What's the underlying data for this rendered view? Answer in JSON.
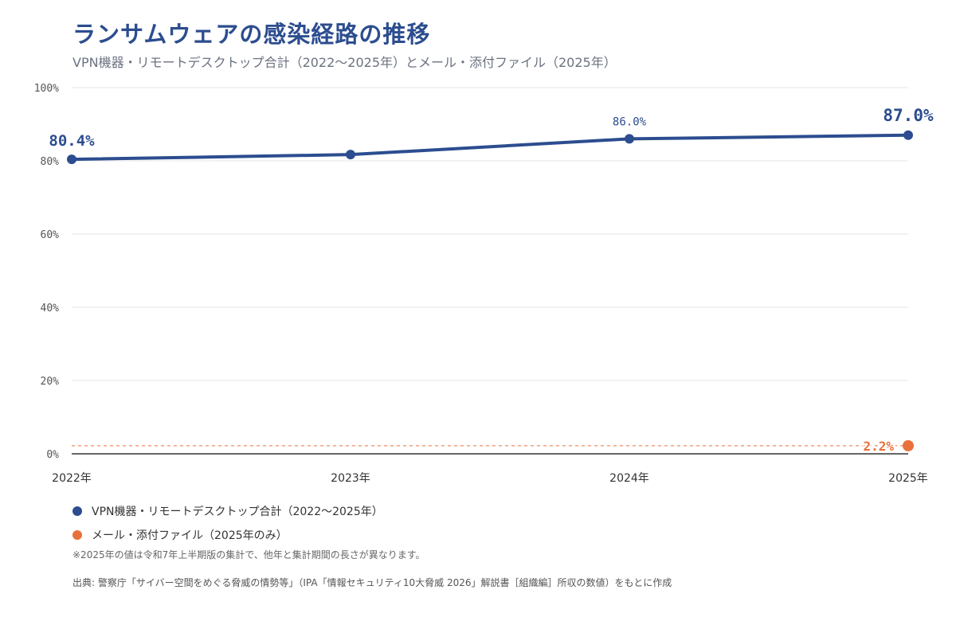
{
  "title": "ランサムウェアの感染経路の推移",
  "subtitle": "VPN機器・リモートデスクトップ合計（2022〜2025年）とメール・添付ファイル（2025年）",
  "colors": {
    "vpn": "#2c4d8f",
    "mail": "#e8703a",
    "grid": "#e6e6e6",
    "axis": "#333333"
  },
  "chart_data": {
    "type": "line",
    "categories": [
      "2022年",
      "2023年",
      "2024年",
      "2025年"
    ],
    "ylim": [
      0,
      100
    ],
    "yticks": [
      "0%",
      "20%",
      "40%",
      "60%",
      "80%",
      "100%"
    ],
    "yticks_values": [
      0,
      20,
      40,
      60,
      80,
      100
    ],
    "grid": true,
    "series": [
      {
        "name": "VPN機器・リモートデスクトップ合計（2022〜2025年）",
        "values": [
          80.4,
          81.7,
          86.0,
          87.0
        ],
        "labels": [
          "80.4%",
          null,
          "86.0%",
          "87.0%"
        ]
      },
      {
        "name": "メール・添付ファイル（2025年のみ）",
        "values": [
          null,
          null,
          null,
          2.2
        ],
        "labels": [
          null,
          null,
          null,
          "2.2%"
        ]
      }
    ]
  },
  "note": "※2025年の値は令和7年上半期版の集計で、他年と集計期間の長さが異なります。",
  "source": "出典: 警察庁「サイバー空間をめぐる脅威の情勢等」（IPA「情報セキュリティ10大脅威 2026」解説書［組織編］所収の数値）をもとに作成"
}
